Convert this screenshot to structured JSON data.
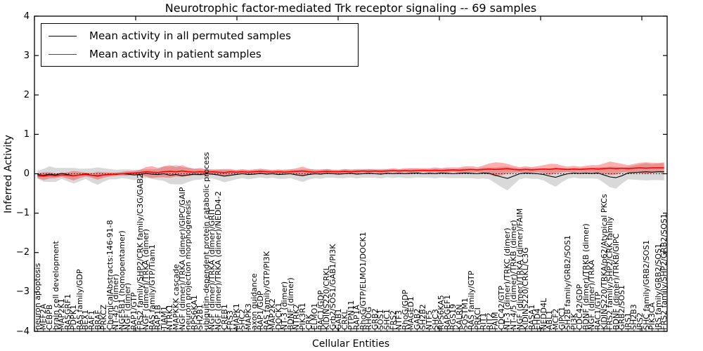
{
  "title": "Neurotrophic factor-mediated Trk receptor signaling -- 69 samples",
  "legend": {
    "items": [
      {
        "label": "Mean activity in all permuted samples",
        "color": "#000000"
      },
      {
        "label": "Mean activity in patient samples",
        "color": "#ff0000"
      }
    ]
  },
  "colors": {
    "permuted_line": "#000000",
    "patient_line": "#ff0000",
    "permuted_band": "rgba(130,130,130,0.30)",
    "patient_band": "rgba(255,0,0,0.32)",
    "zero_line": "#000000",
    "frame": "#000000"
  },
  "chart_data": {
    "type": "line",
    "title": "Neurotrophic factor-mediated Trk receptor signaling -- 69 samples",
    "xlabel": "Cellular Entities",
    "ylabel": "Inferred Activity",
    "ylim": [
      -4,
      4
    ],
    "yticks": [
      4,
      3,
      2,
      1,
      0,
      -1,
      -2,
      -3,
      -4
    ],
    "grid": false,
    "legend_position": "upper left",
    "zero_line_style": "dotted",
    "categories": [
      "neuron apoptosis",
      "MEF2A",
      "CEBPB",
      "brain cell development",
      "MAP2K1",
      "RASGRF1",
      "PDPK1",
      "RAS family/GDP",
      "BEX1",
      "RAF1",
      "BRAF",
      "PRKCZ",
      "ChemicalAbstracts:146-91-8",
      "NT-4/5 (dimer)",
      "NGF5B1 (homopentamer)",
      "NGF (dimer)",
      "RAP1/GTP",
      "FRS2 family/SHP2/CRK family/C3G/GAB2",
      "NGF (dimer)/TRKA (dimer)",
      "RAS family/GTP/Tiam1",
      "RAP1B",
      "TIAM1",
      "NTRK1",
      "MAPKKK cascade",
      "NGF (dimer)/TRKA (dimer)/GIPC/GAIP",
      "neuron projection morphogenesis",
      "RPS6KA1",
      "SH2B1",
      "ubiquitin-dependent protein catabolic process",
      "NGF (dimer)/TRKA (dimer)/GRIT",
      "NGF (dimer)/TRKA (dimer)/NEDD4-2",
      "CREB1",
      "FRS3",
      "MAPK1",
      "SHC2",
      "MAPK3",
      "axon guidance",
      "RAP1/GDP",
      "RAS family/GTP/PI3K",
      "MAP2K2",
      "DOCK1",
      "NT-3 (dimer)",
      "BDNF (dimer)",
      "NTRK2",
      "PIK3R1",
      "CRK",
      "ELMO1",
      "RAC1/GDP",
      "KIDINS220/CRKL",
      "Grb2/SOS1/GAB1/PI3K",
      "GAB1",
      "CRKL",
      "PTPN11",
      "RAP1A",
      "RhoG/GTP/ELMO1/DOCK1",
      "RHOG",
      "GRB2",
      "SOS1",
      "SHC1",
      "FRS2",
      "NTF3",
      "RhoG/GDP",
      "MAGED1",
      "GAB2",
      "SH2B2",
      "NTF5",
      "SHC3",
      "RPS6KA5",
      "RAPGEF1",
      "RGS19",
      "KALRN",
      "SQSTM1",
      "RAS family/GTP",
      "PRKCI",
      "RIT1",
      "RIT2",
      "FAIM",
      "CDC42/GTP",
      "NT-3 (dimer)/TRKC (dimer)",
      "NT-4/5 (dimer)/TRKB (dimer)",
      "NGF (dimer)/TRKA (dimer)/FAIM",
      "KIDINS220/CRKL/C3G",
      "RASA1",
      "EHD4",
      "NEDD4L",
      "ABL1",
      "MCF2",
      "GIPC1",
      "SH2B family/GRB2/SOS1",
      "PI3K",
      "CDC42/GDP",
      "BDNF (dimer)/TRKB (dimer)",
      "NGF (dimer)/TRKA",
      "RAC1/GTP",
      "KIDINS220/TRKA/p62/Atypical PKCs",
      "FRS2 family/SHP2/CRK family",
      "BDNF (dimer)/TRKB/GIPC",
      "GRB2/SOS1",
      "IRS1",
      "SH2B3",
      "IRS2",
      "SHC family/GRB2/SOS1",
      "PIK3CA",
      "IRS family/GRB2/SOS1",
      "FRS2 family/SHP2/GRB2/SOS1"
    ],
    "series": [
      {
        "name": "Mean activity in all permuted samples",
        "color": "#000000",
        "values": [
          -0.02,
          -0.04,
          -0.01,
          -0.03,
          0.01,
          -0.02,
          -0.05,
          -0.03,
          0.0,
          -0.04,
          -0.06,
          -0.03,
          -0.01,
          -0.02,
          0.0,
          -0.01,
          -0.03,
          -0.02,
          0.01,
          -0.01,
          -0.02,
          0.0,
          -0.04,
          -0.02,
          -0.05,
          -0.03,
          -0.01,
          -0.02,
          0.0,
          -0.01,
          -0.03,
          -0.06,
          -0.04,
          -0.02,
          0.0,
          -0.02,
          -0.01,
          0.01,
          -0.01,
          0.0,
          -0.02,
          -0.01,
          0.0,
          -0.03,
          -0.05,
          -0.02,
          0.0,
          -0.01,
          0.01,
          0.0,
          -0.01,
          0.0,
          0.01,
          -0.01,
          0.0,
          0.01,
          0.0,
          -0.01,
          0.01,
          0.0,
          0.01,
          0.0,
          0.01,
          0.02,
          0.0,
          0.01,
          0.0,
          0.02,
          0.01,
          0.0,
          0.01,
          0.02,
          0.01,
          0.0,
          0.02,
          0.01,
          -0.04,
          -0.08,
          -0.12,
          -0.06,
          0.0,
          0.02,
          0.01,
          0.0,
          -0.02,
          -0.06,
          -0.09,
          -0.04,
          0.0,
          0.02,
          0.01,
          0.02,
          0.01,
          0.02,
          -0.03,
          -0.08,
          -0.1,
          -0.05,
          0.02,
          0.03,
          0.04,
          0.05,
          0.04,
          0.05,
          0.05
        ],
        "band_half_width": [
          0.1,
          0.16,
          0.2,
          0.18,
          0.14,
          0.17,
          0.2,
          0.16,
          0.13,
          0.18,
          0.22,
          0.17,
          0.13,
          0.12,
          0.11,
          0.12,
          0.13,
          0.12,
          0.11,
          0.12,
          0.14,
          0.18,
          0.22,
          0.25,
          0.22,
          0.18,
          0.15,
          0.13,
          0.12,
          0.11,
          0.13,
          0.16,
          0.14,
          0.12,
          0.11,
          0.12,
          0.11,
          0.1,
          0.11,
          0.1,
          0.11,
          0.12,
          0.11,
          0.13,
          0.16,
          0.13,
          0.11,
          0.12,
          0.11,
          0.1,
          0.1,
          0.11,
          0.1,
          0.11,
          0.1,
          0.11,
          0.1,
          0.11,
          0.1,
          0.11,
          0.1,
          0.11,
          0.12,
          0.11,
          0.1,
          0.11,
          0.12,
          0.11,
          0.12,
          0.11,
          0.12,
          0.13,
          0.12,
          0.13,
          0.14,
          0.15,
          0.2,
          0.26,
          0.3,
          0.22,
          0.14,
          0.13,
          0.14,
          0.13,
          0.15,
          0.2,
          0.24,
          0.18,
          0.13,
          0.12,
          0.13,
          0.14,
          0.13,
          0.15,
          0.2,
          0.26,
          0.28,
          0.2,
          0.16,
          0.18,
          0.2,
          0.22,
          0.2,
          0.21,
          0.22
        ]
      },
      {
        "name": "Mean activity in patient samples",
        "color": "#ff0000",
        "values": [
          -0.05,
          -0.06,
          -0.04,
          -0.05,
          -0.03,
          -0.04,
          -0.05,
          -0.03,
          -0.02,
          -0.04,
          -0.05,
          -0.03,
          -0.02,
          -0.01,
          0.0,
          0.01,
          0.02,
          0.03,
          0.05,
          0.04,
          0.03,
          0.05,
          0.06,
          0.05,
          0.07,
          0.05,
          0.04,
          0.05,
          0.04,
          0.05,
          0.04,
          0.03,
          0.05,
          0.04,
          0.05,
          0.04,
          0.05,
          0.06,
          0.05,
          0.04,
          0.05,
          0.04,
          0.05,
          0.06,
          0.07,
          0.05,
          0.04,
          0.05,
          0.06,
          0.05,
          0.05,
          0.06,
          0.05,
          0.06,
          0.07,
          0.06,
          0.07,
          0.06,
          0.07,
          0.08,
          0.07,
          0.08,
          0.07,
          0.08,
          0.09,
          0.08,
          0.09,
          0.08,
          0.09,
          0.1,
          0.09,
          0.1,
          0.11,
          0.1,
          0.11,
          0.12,
          0.11,
          0.12,
          0.13,
          0.11,
          0.1,
          0.11,
          0.1,
          0.11,
          0.12,
          0.11,
          0.13,
          0.12,
          0.11,
          0.12,
          0.11,
          0.12,
          0.13,
          0.12,
          0.13,
          0.14,
          0.13,
          0.14,
          0.13,
          0.14,
          0.15,
          0.14,
          0.15,
          0.15,
          0.15
        ],
        "band_half_width": [
          0.06,
          0.1,
          0.08,
          0.06,
          0.05,
          0.08,
          0.12,
          0.08,
          0.05,
          0.06,
          0.1,
          0.07,
          0.05,
          0.04,
          0.05,
          0.06,
          0.05,
          0.07,
          0.12,
          0.15,
          0.12,
          0.14,
          0.16,
          0.12,
          0.15,
          0.11,
          0.08,
          0.1,
          0.07,
          0.06,
          0.07,
          0.09,
          0.07,
          0.05,
          0.06,
          0.05,
          0.06,
          0.07,
          0.06,
          0.05,
          0.06,
          0.05,
          0.06,
          0.08,
          0.11,
          0.08,
          0.06,
          0.05,
          0.06,
          0.05,
          0.05,
          0.06,
          0.05,
          0.06,
          0.05,
          0.06,
          0.05,
          0.06,
          0.05,
          0.06,
          0.05,
          0.06,
          0.07,
          0.06,
          0.05,
          0.06,
          0.07,
          0.06,
          0.07,
          0.06,
          0.07,
          0.09,
          0.08,
          0.07,
          0.1,
          0.14,
          0.18,
          0.16,
          0.12,
          0.09,
          0.07,
          0.08,
          0.07,
          0.08,
          0.1,
          0.14,
          0.12,
          0.09,
          0.07,
          0.08,
          0.07,
          0.08,
          0.09,
          0.1,
          0.13,
          0.17,
          0.15,
          0.11,
          0.09,
          0.11,
          0.13,
          0.15,
          0.13,
          0.12,
          0.14
        ]
      }
    ]
  }
}
